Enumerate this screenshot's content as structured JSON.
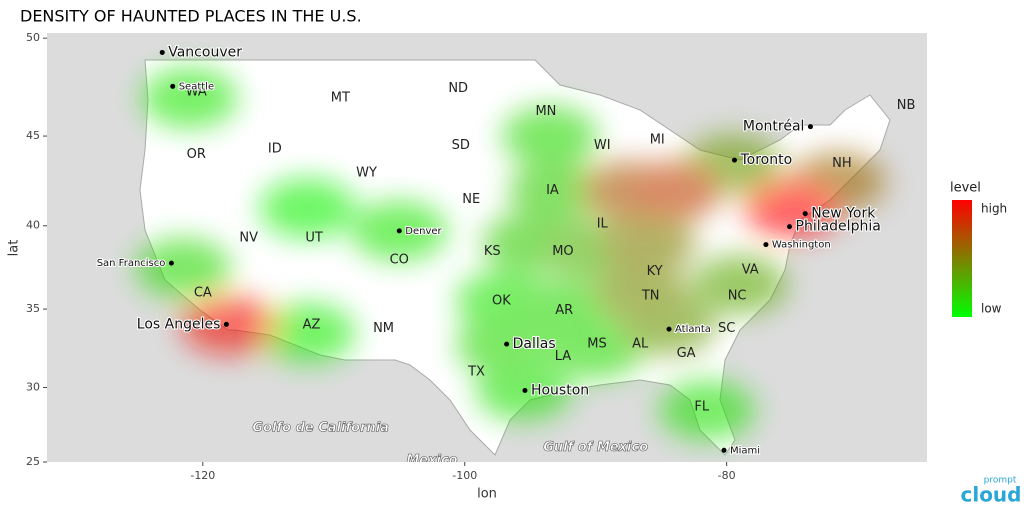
{
  "chart_data": {
    "type": "density-map",
    "title": "DENSITY OF HAUNTED PLACES IN THE U.S.",
    "x_label": "lon",
    "y_label": "lat",
    "xlim": [
      -131.9,
      -64.7
    ],
    "ylim": [
      25,
      50.25
    ],
    "xticks": [
      -120,
      -100,
      -80
    ],
    "yticks": [
      25,
      30,
      35,
      40,
      45,
      50
    ],
    "legend": {
      "title": "level",
      "high": "high",
      "low": "low",
      "colors": [
        "#00ff00",
        "#ff0000"
      ]
    },
    "hotspots": [
      {
        "lon": -112,
        "lat": 41,
        "level": 0.05
      },
      {
        "lon": -112,
        "lat": 33.5,
        "level": 0.08
      },
      {
        "lon": -121,
        "lat": 47,
        "level": 0.1
      },
      {
        "lon": -105,
        "lat": 39.7,
        "level": 0.1
      },
      {
        "lon": -97,
        "lat": 35.5,
        "level": 0.1
      },
      {
        "lon": -81.5,
        "lat": 28.5,
        "level": 0.12
      },
      {
        "lon": -95.5,
        "lat": 29.8,
        "level": 0.12
      },
      {
        "lon": -121.5,
        "lat": 37.5,
        "level": 0.15
      },
      {
        "lon": -97,
        "lat": 32.7,
        "level": 0.15
      },
      {
        "lon": -93.5,
        "lat": 45,
        "level": 0.15
      },
      {
        "lon": -92.5,
        "lat": 35,
        "level": 0.15
      },
      {
        "lon": -90,
        "lat": 32.5,
        "level": 0.15
      },
      {
        "lon": -93,
        "lat": 42,
        "level": 0.2
      },
      {
        "lon": -95,
        "lat": 39,
        "level": 0.2
      },
      {
        "lon": -90.5,
        "lat": 38.6,
        "level": 0.3
      },
      {
        "lon": -79,
        "lat": 36.5,
        "level": 0.35
      },
      {
        "lon": -84.5,
        "lat": 34,
        "level": 0.4
      },
      {
        "lon": -79.5,
        "lat": 43.5,
        "level": 0.4
      },
      {
        "lon": -86.5,
        "lat": 36,
        "level": 0.45
      },
      {
        "lon": -86,
        "lat": 39,
        "level": 0.5
      },
      {
        "lon": -71.5,
        "lat": 42.5,
        "level": 0.6
      },
      {
        "lon": -87.5,
        "lat": 42,
        "level": 0.65
      },
      {
        "lon": -84,
        "lat": 42,
        "level": 0.75
      },
      {
        "lon": -118,
        "lat": 34,
        "level": 0.95
      },
      {
        "lon": -75,
        "lat": 41,
        "level": 1.0
      }
    ],
    "states": [
      {
        "name": "WA",
        "lon": -120.5,
        "lat": 47.3
      },
      {
        "name": "OR",
        "lon": -120.5,
        "lat": 44
      },
      {
        "name": "ID",
        "lon": -114.5,
        "lat": 44.3
      },
      {
        "name": "MT",
        "lon": -109.5,
        "lat": 47
      },
      {
        "name": "WY",
        "lon": -107.5,
        "lat": 43
      },
      {
        "name": "ND",
        "lon": -100.5,
        "lat": 47.5
      },
      {
        "name": "SD",
        "lon": -100.3,
        "lat": 44.5
      },
      {
        "name": "NE",
        "lon": -99.5,
        "lat": 41.5
      },
      {
        "name": "NV",
        "lon": -116.5,
        "lat": 39.3
      },
      {
        "name": "UT",
        "lon": -111.5,
        "lat": 39.3
      },
      {
        "name": "CO",
        "lon": -105,
        "lat": 38
      },
      {
        "name": "CA",
        "lon": -120,
        "lat": 36
      },
      {
        "name": "AZ",
        "lon": -111.7,
        "lat": 34
      },
      {
        "name": "NM",
        "lon": -106.2,
        "lat": 33.8
      },
      {
        "name": "KS",
        "lon": -97.9,
        "lat": 38.5
      },
      {
        "name": "OK",
        "lon": -97.2,
        "lat": 35.5
      },
      {
        "name": "TX",
        "lon": -99.1,
        "lat": 31
      },
      {
        "name": "MN",
        "lon": -93.8,
        "lat": 46.3
      },
      {
        "name": "IA",
        "lon": -93.3,
        "lat": 42
      },
      {
        "name": "MO",
        "lon": -92.5,
        "lat": 38.5
      },
      {
        "name": "AR",
        "lon": -92.4,
        "lat": 34.9
      },
      {
        "name": "LA",
        "lon": -92.5,
        "lat": 32
      },
      {
        "name": "MS",
        "lon": -89.9,
        "lat": 32.8
      },
      {
        "name": "AL",
        "lon": -86.6,
        "lat": 32.8
      },
      {
        "name": "GA",
        "lon": -83.1,
        "lat": 32.2
      },
      {
        "name": "FL",
        "lon": -81.9,
        "lat": 28.7
      },
      {
        "name": "TN",
        "lon": -85.8,
        "lat": 35.8
      },
      {
        "name": "KY",
        "lon": -85.5,
        "lat": 37.3
      },
      {
        "name": "IL",
        "lon": -89.5,
        "lat": 40.1
      },
      {
        "name": "WI",
        "lon": -89.5,
        "lat": 44.5
      },
      {
        "name": "MI",
        "lon": -85.3,
        "lat": 44.8
      },
      {
        "name": "NC",
        "lon": -79.2,
        "lat": 35.8
      },
      {
        "name": "SC",
        "lon": -80,
        "lat": 33.8
      },
      {
        "name": "VA",
        "lon": -78.2,
        "lat": 37.4
      },
      {
        "name": "NH",
        "lon": -71.2,
        "lat": 43.5
      },
      {
        "name": "NB",
        "lon": -66.3,
        "lat": 46.6
      }
    ],
    "cities": [
      {
        "name": "Vancouver",
        "lon": -123.1,
        "lat": 49.3,
        "size": "large"
      },
      {
        "name": "Seattle",
        "lon": -122.3,
        "lat": 47.6,
        "size": "small"
      },
      {
        "name": "Montréal",
        "lon": -73.6,
        "lat": 45.5,
        "size": "large",
        "side": "left"
      },
      {
        "name": "Toronto",
        "lon": -79.4,
        "lat": 43.7,
        "size": "large"
      },
      {
        "name": "Denver",
        "lon": -105,
        "lat": 39.7,
        "size": "small"
      },
      {
        "name": "San Francisco",
        "lon": -122.4,
        "lat": 37.8,
        "size": "small",
        "side": "left"
      },
      {
        "name": "Washington",
        "lon": -77,
        "lat": 38.9,
        "size": "small"
      },
      {
        "name": "Los Angeles",
        "lon": -118.2,
        "lat": 34.05,
        "size": "large",
        "side": "left"
      },
      {
        "name": "Atlanta",
        "lon": -84.4,
        "lat": 33.75,
        "size": "small"
      },
      {
        "name": "Dallas",
        "lon": -96.8,
        "lat": 32.8,
        "size": "large"
      },
      {
        "name": "Houston",
        "lon": -95.4,
        "lat": 29.8,
        "size": "large"
      },
      {
        "name": "Miami",
        "lon": -80.2,
        "lat": 25.8,
        "size": "small"
      },
      {
        "name": "New York",
        "lon": -74,
        "lat": 40.7,
        "size": "large"
      },
      {
        "name": "Philadelphia",
        "lon": -75.2,
        "lat": 39.95,
        "size": "large"
      }
    ],
    "places": [
      {
        "name": "Golfo de California",
        "lon": -111,
        "lat": 27.3
      },
      {
        "name": "Gulf of Mexico",
        "lon": -90,
        "lat": 26
      },
      {
        "name": "Mexico",
        "lon": -102.5,
        "lat": 25.1
      }
    ],
    "logo": {
      "top": "prompt",
      "main": "cloud"
    }
  }
}
